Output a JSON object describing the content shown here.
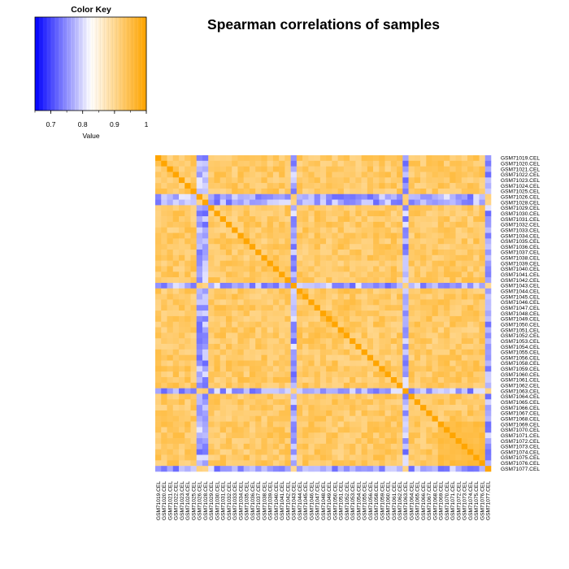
{
  "chart_data": {
    "type": "heatmap",
    "title": "Spearman correlations of samples",
    "color_key": {
      "title": "Color Key",
      "xlabel": "Value",
      "range": [
        0.65,
        1.0
      ],
      "ticks": [
        0.7,
        0.8,
        0.9,
        1
      ],
      "tick_labels": [
        "0.7",
        "0.8",
        "0.9",
        "1"
      ],
      "colors": {
        "low": "#0000ff",
        "mid": "#ffffff",
        "high": "#ffa500"
      }
    },
    "samples": [
      "GSM71019.CEL",
      "GSM71020.CEL",
      "GSM71021.CEL",
      "GSM71022.CEL",
      "GSM71023.CEL",
      "GSM71024.CEL",
      "GSM71025.CEL",
      "GSM71026.CEL",
      "GSM71028.CEL",
      "GSM71029.CEL",
      "GSM71030.CEL",
      "GSM71031.CEL",
      "GSM71032.CEL",
      "GSM71033.CEL",
      "GSM71034.CEL",
      "GSM71035.CEL",
      "GSM71036.CEL",
      "GSM71037.CEL",
      "GSM71038.CEL",
      "GSM71039.CEL",
      "GSM71040.CEL",
      "GSM71041.CEL",
      "GSM71042.CEL",
      "GSM71043.CEL",
      "GSM71044.CEL",
      "GSM71045.CEL",
      "GSM71046.CEL",
      "GSM71047.CEL",
      "GSM71048.CEL",
      "GSM71049.CEL",
      "GSM71050.CEL",
      "GSM71051.CEL",
      "GSM71052.CEL",
      "GSM71053.CEL",
      "GSM71054.CEL",
      "GSM71055.CEL",
      "GSM71056.CEL",
      "GSM71058.CEL",
      "GSM71059.CEL",
      "GSM71060.CEL",
      "GSM71061.CEL",
      "GSM71062.CEL",
      "GSM71063.CEL",
      "GSM71064.CEL",
      "GSM71065.CEL",
      "GSM71066.CEL",
      "GSM71067.CEL",
      "GSM71068.CEL",
      "GSM71069.CEL",
      "GSM71070.CEL",
      "GSM71071.CEL",
      "GSM71072.CEL",
      "GSM71073.CEL",
      "GSM71074.CEL",
      "GSM71075.CEL",
      "GSM71076.CEL",
      "GSM71077.CEL"
    ],
    "outlier_samples": [
      "GSM71026.CEL",
      "GSM71028.CEL",
      "GSM71043.CEL",
      "GSM71063.CEL",
      "GSM71077.CEL"
    ],
    "block_groups": [
      {
        "samples_from": "GSM71069.CEL",
        "samples_to": "GSM71076.CEL"
      }
    ],
    "diagonal_value": 1.0,
    "typical_value": 0.93,
    "outlier_value": 0.72
  }
}
